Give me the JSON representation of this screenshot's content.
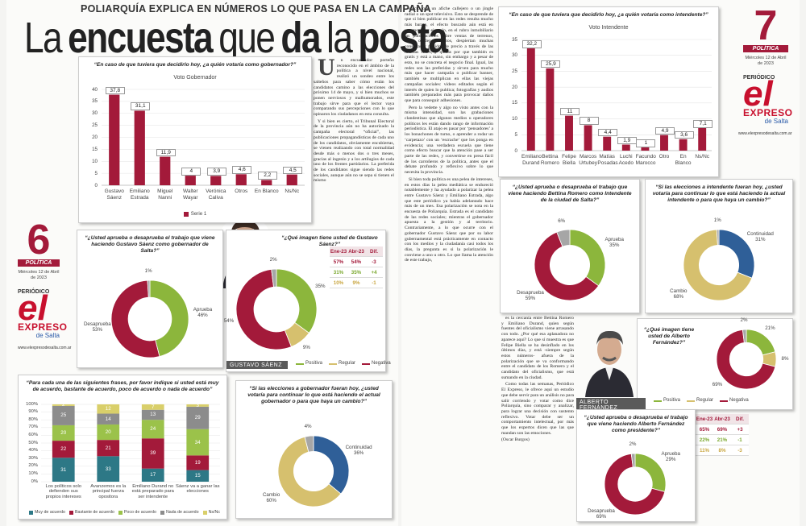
{
  "header": {
    "kicker": "POLIARQUÍA EXPLICA EN NÚMEROS LO QUE PASA EN LA CAMPAÑA",
    "headline": [
      "La",
      "encuesta",
      "que",
      "da",
      "la",
      "posta"
    ]
  },
  "pages": [
    {
      "number": "6",
      "section": "POLÍTICA",
      "date": "Miércoles 12 de Abril de 2023",
      "logo": {
        "top": "PERIÓDICO",
        "main": "el",
        "name": "EXPRESO",
        "sub": "de Salta"
      },
      "url": "www.elexpresodesalta.com.ar"
    },
    {
      "number": "7",
      "section": "POLÍTICA",
      "date": "Miércoles 12 de Abril de 2023",
      "logo": {
        "top": "PERIÓDICO",
        "main": "el",
        "name": "EXPRESO",
        "sub": "de Salta"
      },
      "url": "www.elexpresodesalta.com.ar"
    }
  ],
  "article": {
    "columns": [
      [
        "Un encuestador porteño reconocido en el ámbito de la política a nivel nacional, realizó un sondeo entre los salteños para saber cómo están los candidatos camino a las elecciones del próximo 14 de mayo, y si bien muchos se ponen nerviosos y malhumorados, este trabajo sirve para que el lector vaya comparando sus percepciones con lo que opinaron los ciudadanos en esta consulta.",
        "Y si bien es cierto, el Tribunal Electoral de la provincia aún no ha autorizado la campaña electoral “oficial”, las publicaciones propagandísticas de cada uno de los candidatos, obviamente encubiertas, se vienen realizando con total normalidad desde más o menos dos o tres meses, gracias al ingenio y a los artilugios de cada uno de los frentes partidarios. La preferida de los candidatos sigue siendo las redes sociales, aunque aún no se sepa si tienen el mismo"
      ],
      [
        "efecto que un afiche callejero o un jingle radial o un spot televisivo. Esto se desprende de que si bien publicar en las redes resulta mucho más barato, el efecto buscado aún está en veremos. Por ejemplo, en el rubro inmobiliario las publicaciones sobre ventas de terrenos, casas o departamentos, despiertan muchas consultas y pedidos de precio a través de las mismas redes, y quizás por que también es gratis y está a mano, sin embargo y a pesar de esto, no se concreta el negocio final. Igual, las redes son las preferidas y sirven para mucho más que hacer campaña o publicar banner, también se multiplican en ellas las viejas campañas sociales: videos editados según el interés de quien lo publica; fotografías y audios también preparados más para provocar daños que para conseguir adhesiones.",
        "Pero la vedette y algo no visto antes con la misma intensidad, son las grabaciones clandestinas que algunos medios u operadores políticos les están dando rango de información periodística. El atajo es pasar por ‘pensadores’ a los bonachones de turno, o aprender a rodar un ‘carpetazo’ con un ‘escrache’ que los ponga en evidencia; una verdadera escuela que tiene como efecto buscar que la atención pase a ser parte de las redes, y convertirse en presa fácil de los carroñeros de la política, antes que el debate profundo y reflexivo sobre lo que necesita la provincia.",
        "Si bien toda política es una pelea de intereses, en estos días la pelea mediática se endureció notablemente y ha ayudado a polarizar la pelea entre Gustavo Sáenz y Emiliano Estrada, algo que este periódico ya había adelantado hace más de un mes. Esa polarización se nota en la encuesta de Poliarquía. Estrada es el candidato de las redes sociales; mientras el gobernador apuesta a la gestión y al territorio. Contrariamente, a lo que ocurre con el gobernador Gustavo Sáenz que por su labor gubernamental está prácticamente en contacto con los medios y la ciudadanía casi todos los días, la pregunta es si la polarización le conviene a uno u otro. Lo que llama la atención de este trabajo,"
      ],
      [
        "es la cercanía entre Bettina Romero y Emiliano Durand, quien según fuentes del oficialismo viene arrasando con todo. ¿Por qué esa aplanadora no aparece aquí? Lo que sí muestra es que Felipe Biella se ha desinflado en los últimos días, y está -siempre según estos números- afuera de la polarización que se va conformando entre el candidato de los Romero y el candidato del oficialismo, que está sumando en la ciudad.",
        "Como todas las semanas, Periódico El Expreso, le ofrece aquí un estudio que debe servir para un análisis no para salir corriendo y votar como dice Poliarquía, sino comparar y analizar, para lograr una decisión con sustento reflexivo. Votar debe ser un comportamiento intelectual, por más que los expertos dicen que las que mandan son las emociones."
      ]
    ],
    "author": "(Oscar Burgos)"
  },
  "chart_data": [
    {
      "type": "bar",
      "title": "“En caso de que tuviera que decidirlo hoy, ¿a quién votaría como gobernador?”",
      "subtitle": "Voto Gobernador",
      "categories": [
        "Gustavo Sáenz",
        "Emiliano Estrada",
        "Miguel Nanni",
        "Walter Wayar",
        "Verónica Caliva",
        "Otros",
        "En Blanco",
        "Ns/Nc"
      ],
      "series": [
        {
          "name": "Serie 1",
          "color": "#a31a3a",
          "values": [
            37.8,
            31.1,
            11.9,
            4,
            3.9,
            4.6,
            2.2,
            4.5
          ],
          "value_labels": [
            "37,8",
            "31,1",
            "11,9",
            "4",
            "3,9",
            "4,6",
            "2,2",
            "4,5"
          ]
        }
      ],
      "ylim": [
        0,
        40
      ],
      "yticks": [
        0,
        5,
        10,
        15,
        20,
        25,
        30,
        35,
        40
      ],
      "grid": true
    },
    {
      "type": "bar",
      "title": "“En caso de que tuviera que decidirlo hoy, ¿a quién votaría como intendente?”",
      "subtitle": "Voto Intendente",
      "categories": [
        "Emiliano Durand",
        "Bettina Romero",
        "Felipe Biella",
        "Marcos Urtubey",
        "Matías Posadas",
        "Luchi Acedo",
        "Facundo Marocco",
        "Otro",
        "En Blanco",
        "Ns/Nc"
      ],
      "values": [
        32.2,
        25.9,
        11,
        8,
        4.4,
        1.9,
        1,
        4.9,
        3.6,
        7.1
      ],
      "value_labels": [
        "32,2",
        "25,9",
        "11",
        "8",
        "4,4",
        "1,9",
        "1",
        "4,9",
        "3,6",
        "7,1"
      ],
      "color": "#a31a3a",
      "ylim": [
        0,
        35
      ],
      "yticks": [
        0,
        5,
        10,
        15,
        20,
        25,
        30,
        35
      ],
      "grid": true
    },
    {
      "type": "donut",
      "title": "“¿Usted aprueba o desaprueba el trabajo que viene haciendo Gustavo Sáenz como gobernador de Salta?”",
      "categories": [
        "Aprueba",
        "Desaprueba",
        null
      ],
      "values": [
        46,
        53,
        1
      ],
      "value_labels": [
        "46%",
        "53%",
        "1%"
      ],
      "colors": [
        "#8cb63c",
        "#a31a3a",
        "#a6a6a6"
      ]
    },
    {
      "type": "donut",
      "title": "“¿Qué imagen tiene usted de Gustavo Sáenz?”",
      "caption": "GUSTAVO SÁENZ",
      "legend": true,
      "categories": [
        "Positiva",
        "Regular",
        "Negativa",
        null
      ],
      "values": [
        35,
        9,
        54,
        2
      ],
      "value_labels": [
        "35%",
        "9%",
        "54%",
        "2%"
      ],
      "colors": [
        "#8cb63c",
        "#d6c06e",
        "#a31a3a",
        "#a6a6a6"
      ],
      "table": {
        "header": [
          "Ene-23",
          "Abr-23",
          "Dif."
        ],
        "rows": [
          [
            "57%",
            "54%",
            "-3"
          ],
          [
            "31%",
            "35%",
            "+4"
          ],
          [
            "10%",
            "9%",
            "-1"
          ]
        ],
        "row_colors": [
          "#a31a3a",
          "#7aa82e",
          "#c9a640"
        ]
      }
    },
    {
      "type": "stacked_bar",
      "title": "“Para cada una de las siguientes frases, por favor indique si usted está muy de acuerdo, bastante de acuerdo, poco de acuerdo o nada de acuerdo”",
      "categories": [
        "Los políticos solo defienden sus propios intereses",
        "Avanzemos es la principal fuerza opositora",
        "Emiliano Durand no está preparado para ser intendente",
        "Sáenz va a ganar las elecciones"
      ],
      "series": [
        {
          "name": "Muy de acuerdo",
          "color": "#2d7886",
          "values": [
            31,
            33,
            17,
            15
          ]
        },
        {
          "name": "Bastante de acuerdo",
          "color": "#a31a3a",
          "values": [
            22,
            21,
            39,
            19
          ]
        },
        {
          "name": "Poco de acuerdo",
          "color": "#9bc24a",
          "values": [
            20,
            20,
            24,
            34
          ]
        },
        {
          "name": "Nada de acuerdo",
          "color": "#8c8c8c",
          "values": [
            25,
            14,
            13,
            29
          ]
        },
        {
          "name": "Ns/Nc",
          "color": "#d9cf6a",
          "values": [
            2,
            12,
            7,
            3
          ]
        }
      ],
      "ylim": [
        0,
        100
      ],
      "yticks": [
        {
          "value": 0,
          "label": "0%"
        },
        {
          "value": 10,
          "label": "10%"
        },
        {
          "value": 20,
          "label": "20%"
        },
        {
          "value": 30,
          "label": "30%"
        },
        {
          "value": 40,
          "label": "40%"
        },
        {
          "value": 50,
          "label": "50%"
        },
        {
          "value": 60,
          "label": "60%"
        },
        {
          "value": 70,
          "label": "70%"
        },
        {
          "value": 80,
          "label": "80%"
        },
        {
          "value": 90,
          "label": "90%"
        },
        {
          "value": 100,
          "label": "100%"
        }
      ]
    },
    {
      "type": "donut",
      "title": "“Si las elecciones a gobernador fueran hoy, ¿usted votaría para continuar lo que está haciendo el actual gobernador o para que haya un cambio?”",
      "categories": [
        "Continuidad",
        "Cambio",
        null
      ],
      "values": [
        36,
        60,
        4
      ],
      "value_labels": [
        "36%",
        "60%",
        "4%"
      ],
      "colors": [
        "#2f5f98",
        "#d6c06e",
        "#a6a6a6"
      ]
    },
    {
      "type": "donut",
      "title": "“¿Usted aprueba o desaprueba el trabajo que viene haciendo Bettina Romero como Intendente de la ciudad de Salta?”",
      "categories": [
        "Aprueba",
        "Desaprueba",
        null
      ],
      "values": [
        35,
        59,
        6
      ],
      "value_labels": [
        "35%",
        "59%",
        "6%"
      ],
      "colors": [
        "#8cb63c",
        "#a31a3a",
        "#a6a6a6"
      ]
    },
    {
      "type": "donut",
      "title": "“Si las elecciones a intendente fueran hoy, ¿usted votaría para continuar lo que está haciendo la actual intendente o para que haya un cambio?”",
      "categories": [
        "Continuidad",
        "Cambio",
        null
      ],
      "values": [
        31,
        68,
        1
      ],
      "value_labels": [
        "31%",
        "68%",
        "1%"
      ],
      "colors": [
        "#2f5f98",
        "#d6c06e",
        "#a6a6a6"
      ]
    },
    {
      "type": "donut",
      "title": "“¿Qué imagen tiene usted de Alberto Fernández?”",
      "caption": "ALBERTO FERNÁNDEZ",
      "legend": true,
      "categories": [
        "Positiva",
        "Regular",
        "Negativa",
        null
      ],
      "values": [
        21,
        8,
        69,
        2
      ],
      "value_labels": [
        "21%",
        "8%",
        "69%",
        "2%"
      ],
      "colors": [
        "#8cb63c",
        "#d6c06e",
        "#a31a3a",
        "#a6a6a6"
      ],
      "table": {
        "header": [
          "Ene-23",
          "Abr-23",
          "Dif."
        ],
        "rows": [
          [
            "65%",
            "69%",
            "+3"
          ],
          [
            "22%",
            "21%",
            "-1"
          ],
          [
            "11%",
            "8%",
            "-3"
          ]
        ],
        "row_colors": [
          "#a31a3a",
          "#7aa82e",
          "#c9a640"
        ]
      }
    },
    {
      "type": "donut",
      "title": "“¿Usted aprueba o desaprueba el trabajo que viene haciendo Alberto Fernández como presidente?”",
      "categories": [
        "Aprueba",
        "Desaprueba",
        null
      ],
      "values": [
        29,
        69,
        2
      ],
      "value_labels": [
        "29%",
        "69%",
        "2%"
      ],
      "colors": [
        "#8cb63c",
        "#a31a3a",
        "#a6a6a6"
      ]
    }
  ]
}
